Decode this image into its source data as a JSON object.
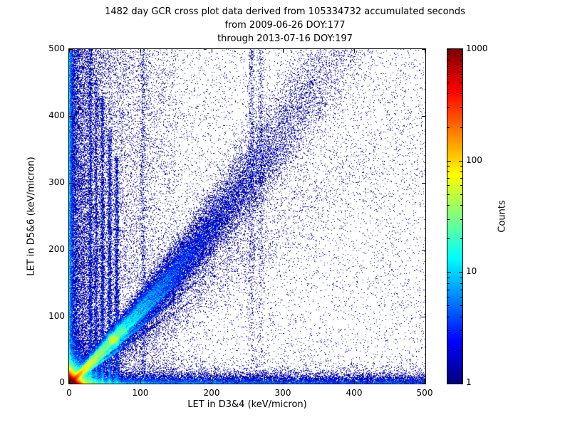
{
  "chart_data": {
    "type": "heatmap",
    "title_lines": [
      "1482 day GCR cross plot data derived from 105334732 accumulated seconds",
      "from 2009-06-26 DOY:177",
      "through 2013-07-16 DOY:197"
    ],
    "xlabel": "LET in D3&4 (keV/micron)",
    "ylabel": "LET in D5&6 (keV/micron)",
    "xlim": [
      0,
      500
    ],
    "ylim": [
      0,
      500
    ],
    "x_ticks": [
      0,
      100,
      200,
      300,
      400,
      500
    ],
    "y_ticks": [
      0,
      100,
      200,
      300,
      400,
      500
    ],
    "grid": false,
    "colormap": "jet",
    "background": "#ffffff",
    "colorbar": {
      "label": "Counts",
      "scale": "log",
      "range": [
        1,
        1000
      ],
      "ticks": [
        1,
        10,
        100,
        1000
      ],
      "tick_labels": [
        "1",
        "10",
        "100",
        "1000"
      ],
      "position": "right"
    },
    "seed": 1482,
    "features": {
      "background": [
        {
          "n": 9000
        },
        {
          "n": 3500,
          "xmax": 150
        }
      ],
      "left_bands": [
        {
          "n": 14000,
          "x_scale": 22,
          "y_pow": 1.3
        },
        {
          "n": 9000,
          "x_scale": 60,
          "y_pow": 1.2
        },
        {
          "n": 11000,
          "x_scale": 2.5,
          "y_pow": 1.0
        }
      ],
      "bottom_band": {
        "n": 20000,
        "y_scale": 6,
        "x_pow": 1.5
      },
      "vertical_streaks": [
        {
          "x": 30,
          "sigma": 1.2,
          "ymax": 500,
          "ypow": 1.6,
          "n": 2400
        },
        {
          "x": 38,
          "sigma": 1.2,
          "ymax": 460,
          "ypow": 1.6,
          "n": 2000
        },
        {
          "x": 47,
          "sigma": 1.3,
          "ymax": 430,
          "ypow": 1.5,
          "n": 2800
        },
        {
          "x": 57,
          "sigma": 1.4,
          "ymax": 380,
          "ypow": 1.5,
          "n": 2800
        },
        {
          "x": 67,
          "sigma": 1.5,
          "ymax": 340,
          "ypow": 1.4,
          "n": 2400
        },
        {
          "x": 104,
          "sigma": 2.0,
          "ymax": 500,
          "ypow": 1.2,
          "n": 1000
        },
        {
          "x": 256,
          "sigma": 2.5,
          "ymax": 500,
          "ypow": 0.7,
          "n": 800
        },
        {
          "x": 269,
          "sigma": 2.5,
          "ymax": 500,
          "ypow": 0.7,
          "n": 550
        }
      ],
      "diagonal_band": {
        "n": 70000,
        "t_scale": 110,
        "curve": 0.00085,
        "sigma0": 1.5,
        "sigma_slope": 0.085
      },
      "sub_diagonal": {
        "n": 6000,
        "slope": 0.8,
        "t_scale": 160,
        "sigma0": 12,
        "sigma_slope": 0.08
      },
      "hotspot": [
        {
          "n": 130000,
          "scale": 4
        },
        {
          "n": 30000,
          "scale": 11
        }
      ],
      "fan_tracks": [
        {
          "slope": 0.72,
          "t_scale": 30,
          "sigma": 1.0,
          "n": 5000
        },
        {
          "slope": 0.85,
          "t_scale": 38,
          "sigma": 1.0,
          "n": 6500
        },
        {
          "slope": 1.0,
          "t_scale": 45,
          "sigma": 1.0,
          "n": 7000
        },
        {
          "slope": 1.18,
          "t_scale": 33,
          "sigma": 1.0,
          "n": 5200
        }
      ],
      "clusters": [
        {
          "x": 62,
          "y": 66,
          "sigma": 4,
          "n": 4500
        },
        {
          "x": 74,
          "y": 78,
          "sigma": 5,
          "n": 1500
        }
      ]
    }
  }
}
